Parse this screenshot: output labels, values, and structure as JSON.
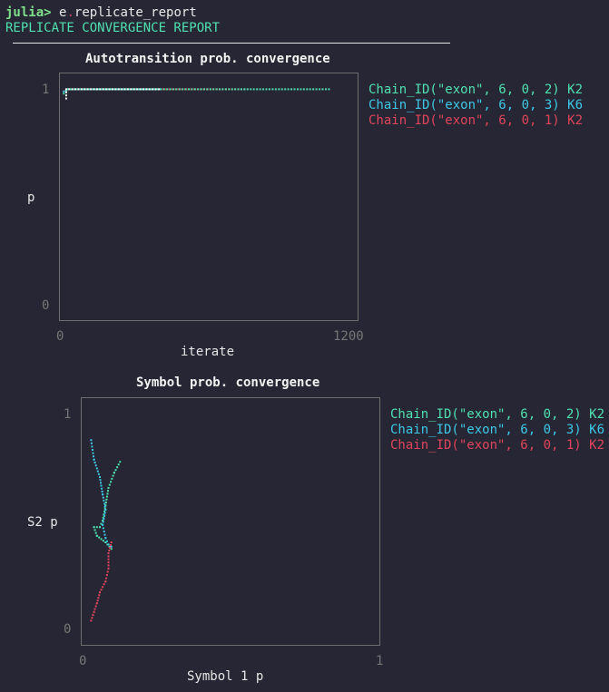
{
  "repl": {
    "prompt": "julia>",
    "command_obj": "e",
    "command_dot": ".",
    "command_field": "replicate_report",
    "output_header": "REPLICATE CONVERGENCE REPORT"
  },
  "colors": {
    "chain_k2_exon_2": "#4fe0b0",
    "chain_k6_exon_3": "#3cc8e6",
    "chain_k2_exon_1": "#e0445a",
    "start_marker": "#ffffff"
  },
  "plots": [
    {
      "title": "Autotransition prob. convergence",
      "ylabel": "p",
      "xlabel": "iterate",
      "y_top": "1",
      "y_bottom": "0",
      "x_left": "0",
      "x_right": "1200",
      "legend": [
        {
          "label": "Chain_ID(\"exon\", 6, 0, 2) K2",
          "color": "#4fe0b0"
        },
        {
          "label": "Chain_ID(\"exon\", 6, 0, 3) K6",
          "color": "#3cc8e6"
        },
        {
          "label": "Chain_ID(\"exon\", 6, 0, 1) K2",
          "color": "#e0445a"
        }
      ]
    },
    {
      "title": "Symbol prob. convergence",
      "ylabel": "S2 p",
      "xlabel": "Symbol 1 p",
      "y_top": "1",
      "y_bottom": "0",
      "x_left": "0",
      "x_right": "1",
      "legend": [
        {
          "label": "Chain_ID(\"exon\", 6, 0, 2) K2",
          "color": "#4fe0b0"
        },
        {
          "label": "Chain_ID(\"exon\", 6, 0, 3) K6",
          "color": "#3cc8e6"
        },
        {
          "label": "Chain_ID(\"exon\", 6, 0, 1) K2",
          "color": "#e0445a"
        }
      ]
    }
  ],
  "chart_data": [
    {
      "type": "line",
      "title": "Autotransition prob. convergence",
      "xlabel": "iterate",
      "ylabel": "p",
      "xlim": [
        0,
        1200
      ],
      "ylim": [
        0,
        1
      ],
      "series": [
        {
          "name": "Chain_ID(\"exon\", 6, 0, 1) K2",
          "x": [
            1,
            20,
            400,
            750
          ],
          "y": [
            0.98,
            0.99,
            0.99,
            0.99
          ]
        },
        {
          "name": "Chain_ID(\"exon\", 6, 0, 3) K6",
          "x": [
            1,
            20,
            400
          ],
          "y": [
            0.98,
            0.99,
            0.99
          ]
        },
        {
          "name": "Chain_ID(\"exon\", 6, 0, 2) K2",
          "x": [
            1,
            20,
            750,
            1100
          ],
          "y": [
            0.97,
            0.99,
            0.99,
            0.99
          ]
        }
      ]
    },
    {
      "type": "scatter",
      "title": "Symbol prob. convergence",
      "xlabel": "Symbol 1 p",
      "ylabel": "S2 p",
      "xlim": [
        0,
        1
      ],
      "ylim": [
        0,
        1
      ],
      "series": [
        {
          "name": "Chain_ID(\"exon\", 6, 0, 2) K2",
          "x": [
            0.12,
            0.1,
            0.08,
            0.07,
            0.06,
            0.05,
            0.03,
            0.04,
            0.07,
            0.09
          ],
          "y": [
            0.77,
            0.72,
            0.65,
            0.57,
            0.5,
            0.47,
            0.47,
            0.43,
            0.4,
            0.37
          ]
        },
        {
          "name": "Chain_ID(\"exon\", 6, 0, 3) K6",
          "x": [
            0.02,
            0.03,
            0.05,
            0.06,
            0.07,
            0.06,
            0.07,
            0.08,
            0.09
          ],
          "y": [
            0.87,
            0.78,
            0.7,
            0.62,
            0.55,
            0.48,
            0.42,
            0.39,
            0.38
          ]
        },
        {
          "name": "Chain_ID(\"exon\", 6, 0, 1) K2",
          "x": [
            0.09,
            0.08,
            0.08,
            0.07,
            0.05,
            0.04,
            0.03,
            0.02
          ],
          "y": [
            0.4,
            0.35,
            0.28,
            0.22,
            0.17,
            0.12,
            0.08,
            0.04
          ]
        }
      ]
    }
  ]
}
